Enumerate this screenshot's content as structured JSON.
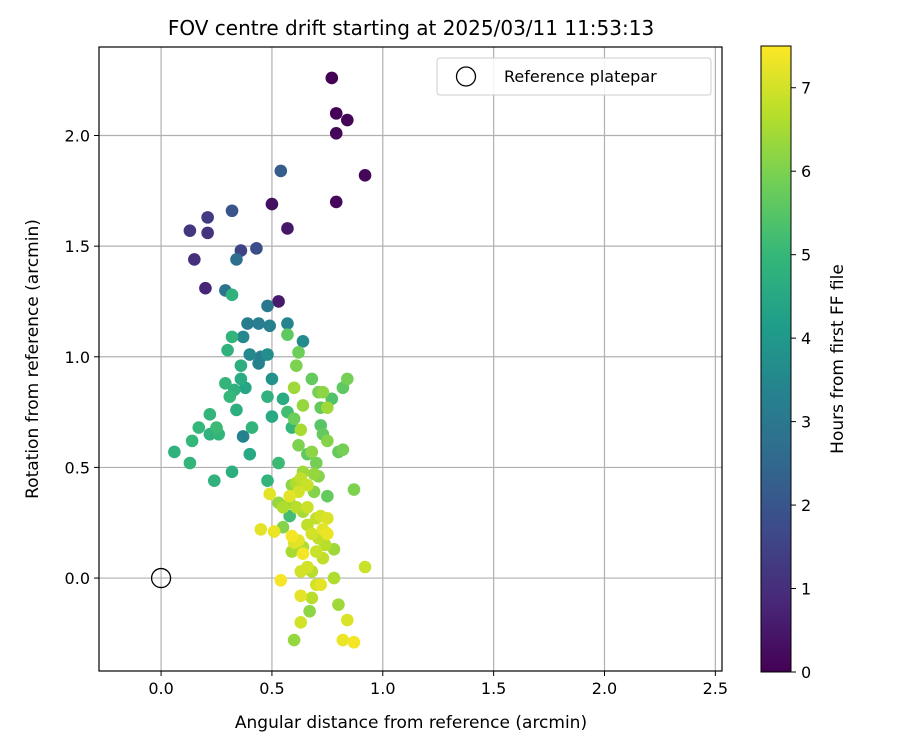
{
  "chart_data": {
    "type": "scatter",
    "title": "FOV centre drift starting at 2025/03/11 11:53:13",
    "xlabel": "Angular distance from reference (arcmin)",
    "ylabel": "Rotation from reference (arcmin)",
    "xlim": [
      -0.28,
      2.53
    ],
    "ylim": [
      -0.42,
      2.4
    ],
    "xticks": [
      0.0,
      0.5,
      1.0,
      1.5,
      2.0,
      2.5
    ],
    "xtick_labels": [
      "0.0",
      "0.5",
      "1.0",
      "1.5",
      "2.0",
      "2.5"
    ],
    "yticks": [
      0.0,
      0.5,
      1.0,
      1.5,
      2.0
    ],
    "ytick_labels": [
      "0.0",
      "0.5",
      "1.0",
      "1.5",
      "2.0"
    ],
    "grid": true,
    "legend": {
      "placement": "top-right",
      "entries": [
        "Reference platepar"
      ]
    },
    "reference_point": {
      "x": 0.0,
      "y": 0.0,
      "label": "Reference platepar",
      "marker": "open-circle"
    },
    "colorbar": {
      "label": "Hours from first FF file",
      "range": [
        0,
        7.5
      ],
      "ticks": [
        0,
        1,
        2,
        3,
        4,
        5,
        6,
        7
      ],
      "tick_labels": [
        "0",
        "1",
        "2",
        "3",
        "4",
        "5",
        "6",
        "7"
      ],
      "colormap": "viridis",
      "colors": [
        "#440154",
        "#482878",
        "#3e4989",
        "#31688e",
        "#26828e",
        "#1f9e89",
        "#35b779",
        "#6ece58",
        "#b5de2b",
        "#fde725"
      ]
    },
    "points": [
      {
        "x": 0.77,
        "y": 2.26,
        "t": 0.02
      },
      {
        "x": 0.79,
        "y": 2.1,
        "t": 0.05
      },
      {
        "x": 0.84,
        "y": 2.07,
        "t": 0.08
      },
      {
        "x": 0.79,
        "y": 2.01,
        "t": 0.1
      },
      {
        "x": 0.92,
        "y": 1.82,
        "t": 0.12
      },
      {
        "x": 0.79,
        "y": 1.7,
        "t": 0.15
      },
      {
        "x": 0.5,
        "y": 1.69,
        "t": 0.3
      },
      {
        "x": 0.57,
        "y": 1.58,
        "t": 0.5
      },
      {
        "x": 0.53,
        "y": 1.25,
        "t": 0.55
      },
      {
        "x": 0.2,
        "y": 1.31,
        "t": 0.8
      },
      {
        "x": 0.15,
        "y": 1.44,
        "t": 1.0
      },
      {
        "x": 0.21,
        "y": 1.56,
        "t": 1.1
      },
      {
        "x": 0.13,
        "y": 1.57,
        "t": 1.2
      },
      {
        "x": 0.21,
        "y": 1.63,
        "t": 1.3
      },
      {
        "x": 0.36,
        "y": 1.48,
        "t": 1.5
      },
      {
        "x": 0.43,
        "y": 1.49,
        "t": 1.8
      },
      {
        "x": 0.32,
        "y": 1.66,
        "t": 2.0
      },
      {
        "x": 0.54,
        "y": 1.84,
        "t": 2.2
      },
      {
        "x": 0.34,
        "y": 1.44,
        "t": 2.7
      },
      {
        "x": 0.29,
        "y": 1.3,
        "t": 2.9
      },
      {
        "x": 0.48,
        "y": 1.23,
        "t": 3.0
      },
      {
        "x": 0.39,
        "y": 1.15,
        "t": 3.1
      },
      {
        "x": 0.44,
        "y": 1.15,
        "t": 3.2
      },
      {
        "x": 0.49,
        "y": 1.14,
        "t": 3.3
      },
      {
        "x": 0.57,
        "y": 1.15,
        "t": 3.4
      },
      {
        "x": 0.37,
        "y": 1.09,
        "t": 3.5
      },
      {
        "x": 0.64,
        "y": 1.07,
        "t": 3.6
      },
      {
        "x": 0.45,
        "y": 1.0,
        "t": 3.2
      },
      {
        "x": 0.4,
        "y": 1.01,
        "t": 3.5
      },
      {
        "x": 0.44,
        "y": 0.97,
        "t": 3.3
      },
      {
        "x": 0.48,
        "y": 1.01,
        "t": 3.7
      },
      {
        "x": 0.5,
        "y": 0.9,
        "t": 3.8
      },
      {
        "x": 0.37,
        "y": 0.64,
        "t": 3.3
      },
      {
        "x": 0.32,
        "y": 1.28,
        "t": 4.8
      },
      {
        "x": 0.32,
        "y": 1.09,
        "t": 4.9
      },
      {
        "x": 0.3,
        "y": 1.03,
        "t": 4.8
      },
      {
        "x": 0.36,
        "y": 0.96,
        "t": 4.7
      },
      {
        "x": 0.36,
        "y": 0.9,
        "t": 4.6
      },
      {
        "x": 0.38,
        "y": 0.86,
        "t": 4.4
      },
      {
        "x": 0.29,
        "y": 0.88,
        "t": 4.9
      },
      {
        "x": 0.31,
        "y": 0.82,
        "t": 5.0
      },
      {
        "x": 0.33,
        "y": 0.85,
        "t": 4.8
      },
      {
        "x": 0.34,
        "y": 0.76,
        "t": 4.7
      },
      {
        "x": 0.4,
        "y": 0.56,
        "t": 4.5
      },
      {
        "x": 0.41,
        "y": 0.68,
        "t": 4.9
      },
      {
        "x": 0.48,
        "y": 0.82,
        "t": 4.8
      },
      {
        "x": 0.5,
        "y": 0.73,
        "t": 4.5
      },
      {
        "x": 0.22,
        "y": 0.74,
        "t": 4.9
      },
      {
        "x": 0.17,
        "y": 0.68,
        "t": 5.0
      },
      {
        "x": 0.25,
        "y": 0.68,
        "t": 5.1
      },
      {
        "x": 0.22,
        "y": 0.65,
        "t": 4.8
      },
      {
        "x": 0.26,
        "y": 0.65,
        "t": 4.9
      },
      {
        "x": 0.14,
        "y": 0.62,
        "t": 5.0
      },
      {
        "x": 0.06,
        "y": 0.57,
        "t": 4.8
      },
      {
        "x": 0.13,
        "y": 0.52,
        "t": 4.9
      },
      {
        "x": 0.32,
        "y": 0.48,
        "t": 4.7
      },
      {
        "x": 0.24,
        "y": 0.44,
        "t": 4.8
      },
      {
        "x": 0.48,
        "y": 0.44,
        "t": 4.9
      },
      {
        "x": 0.55,
        "y": 0.81,
        "t": 4.6
      },
      {
        "x": 0.57,
        "y": 0.75,
        "t": 5.2
      },
      {
        "x": 0.59,
        "y": 0.68,
        "t": 5.0
      },
      {
        "x": 0.53,
        "y": 0.52,
        "t": 5.1
      },
      {
        "x": 0.58,
        "y": 0.28,
        "t": 5.2
      },
      {
        "x": 0.57,
        "y": 1.1,
        "t": 5.6
      },
      {
        "x": 0.62,
        "y": 1.02,
        "t": 5.8
      },
      {
        "x": 0.61,
        "y": 0.96,
        "t": 6.0
      },
      {
        "x": 0.68,
        "y": 0.9,
        "t": 5.7
      },
      {
        "x": 0.71,
        "y": 0.84,
        "t": 5.9
      },
      {
        "x": 0.73,
        "y": 0.84,
        "t": 6.2
      },
      {
        "x": 0.77,
        "y": 0.81,
        "t": 5.4
      },
      {
        "x": 0.72,
        "y": 0.77,
        "t": 5.7
      },
      {
        "x": 0.75,
        "y": 0.77,
        "t": 6.4
      },
      {
        "x": 0.84,
        "y": 0.9,
        "t": 5.9
      },
      {
        "x": 0.82,
        "y": 0.86,
        "t": 5.6
      },
      {
        "x": 0.6,
        "y": 0.86,
        "t": 6.4
      },
      {
        "x": 0.64,
        "y": 0.78,
        "t": 6.3
      },
      {
        "x": 0.6,
        "y": 0.72,
        "t": 5.8
      },
      {
        "x": 0.72,
        "y": 0.69,
        "t": 5.5
      },
      {
        "x": 0.73,
        "y": 0.65,
        "t": 5.7
      },
      {
        "x": 0.75,
        "y": 0.62,
        "t": 6.1
      },
      {
        "x": 0.62,
        "y": 0.6,
        "t": 6.0
      },
      {
        "x": 0.63,
        "y": 0.67,
        "t": 6.5
      },
      {
        "x": 0.66,
        "y": 0.56,
        "t": 5.6
      },
      {
        "x": 0.7,
        "y": 0.52,
        "t": 5.9
      },
      {
        "x": 0.68,
        "y": 0.57,
        "t": 6.2
      },
      {
        "x": 0.64,
        "y": 0.48,
        "t": 6.4
      },
      {
        "x": 0.69,
        "y": 0.47,
        "t": 6.3
      },
      {
        "x": 0.71,
        "y": 0.46,
        "t": 6.1
      },
      {
        "x": 0.8,
        "y": 0.57,
        "t": 5.7
      },
      {
        "x": 0.82,
        "y": 0.58,
        "t": 5.9
      },
      {
        "x": 0.75,
        "y": 0.37,
        "t": 5.7
      },
      {
        "x": 0.87,
        "y": 0.4,
        "t": 6.0
      },
      {
        "x": 0.59,
        "y": 0.42,
        "t": 6.2
      },
      {
        "x": 0.61,
        "y": 0.43,
        "t": 6.6
      },
      {
        "x": 0.63,
        "y": 0.45,
        "t": 6.8
      },
      {
        "x": 0.66,
        "y": 0.42,
        "t": 6.9
      },
      {
        "x": 0.69,
        "y": 0.39,
        "t": 6.1
      },
      {
        "x": 0.62,
        "y": 0.39,
        "t": 7.0
      },
      {
        "x": 0.58,
        "y": 0.37,
        "t": 7.2
      },
      {
        "x": 0.49,
        "y": 0.38,
        "t": 7.2
      },
      {
        "x": 0.53,
        "y": 0.34,
        "t": 6.3
      },
      {
        "x": 0.55,
        "y": 0.32,
        "t": 6.6
      },
      {
        "x": 0.58,
        "y": 0.34,
        "t": 6.4
      },
      {
        "x": 0.61,
        "y": 0.32,
        "t": 6.7
      },
      {
        "x": 0.64,
        "y": 0.3,
        "t": 6.5
      },
      {
        "x": 0.66,
        "y": 0.32,
        "t": 6.9
      },
      {
        "x": 0.7,
        "y": 0.27,
        "t": 6.8
      },
      {
        "x": 0.72,
        "y": 0.28,
        "t": 7.0
      },
      {
        "x": 0.75,
        "y": 0.27,
        "t": 7.1
      },
      {
        "x": 0.66,
        "y": 0.24,
        "t": 6.8
      },
      {
        "x": 0.68,
        "y": 0.2,
        "t": 7.0
      },
      {
        "x": 0.73,
        "y": 0.22,
        "t": 7.2
      },
      {
        "x": 0.75,
        "y": 0.2,
        "t": 7.3
      },
      {
        "x": 0.71,
        "y": 0.18,
        "t": 6.8
      },
      {
        "x": 0.74,
        "y": 0.15,
        "t": 6.7
      },
      {
        "x": 0.7,
        "y": 0.12,
        "t": 6.9
      },
      {
        "x": 0.64,
        "y": 0.14,
        "t": 6.6
      },
      {
        "x": 0.6,
        "y": 0.16,
        "t": 7.1
      },
      {
        "x": 0.59,
        "y": 0.12,
        "t": 6.5
      },
      {
        "x": 0.62,
        "y": 0.17,
        "t": 7.2
      },
      {
        "x": 0.64,
        "y": 0.11,
        "t": 7.4
      },
      {
        "x": 0.66,
        "y": 0.05,
        "t": 7.0
      },
      {
        "x": 0.78,
        "y": 0.13,
        "t": 6.4
      },
      {
        "x": 0.73,
        "y": 0.09,
        "t": 6.8
      },
      {
        "x": 0.63,
        "y": 0.03,
        "t": 7.0
      },
      {
        "x": 0.68,
        "y": 0.03,
        "t": 6.7
      },
      {
        "x": 0.55,
        "y": 0.23,
        "t": 6.1
      },
      {
        "x": 0.45,
        "y": 0.22,
        "t": 7.2
      },
      {
        "x": 0.51,
        "y": 0.21,
        "t": 7.3
      },
      {
        "x": 0.59,
        "y": 0.19,
        "t": 7.4
      },
      {
        "x": 0.54,
        "y": -0.01,
        "t": 7.4
      },
      {
        "x": 0.7,
        "y": -0.03,
        "t": 7.0
      },
      {
        "x": 0.72,
        "y": -0.03,
        "t": 7.2
      },
      {
        "x": 0.78,
        "y": 0.0,
        "t": 6.6
      },
      {
        "x": 0.63,
        "y": -0.08,
        "t": 7.2
      },
      {
        "x": 0.68,
        "y": -0.09,
        "t": 6.7
      },
      {
        "x": 0.67,
        "y": -0.15,
        "t": 6.2
      },
      {
        "x": 0.8,
        "y": -0.12,
        "t": 6.4
      },
      {
        "x": 0.63,
        "y": -0.2,
        "t": 7.0
      },
      {
        "x": 0.84,
        "y": -0.19,
        "t": 7.1
      },
      {
        "x": 0.6,
        "y": -0.28,
        "t": 6.3
      },
      {
        "x": 0.82,
        "y": -0.28,
        "t": 7.3
      },
      {
        "x": 0.87,
        "y": -0.29,
        "t": 7.4
      },
      {
        "x": 0.92,
        "y": 0.05,
        "t": 6.9
      }
    ]
  }
}
